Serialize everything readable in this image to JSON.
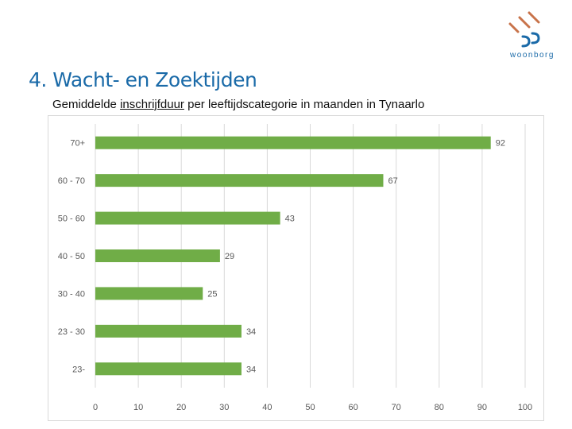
{
  "slide": {
    "title": "4. Wacht- en Zoektijden",
    "subtitle_before": "Gemiddelde ",
    "subtitle_underlined": "inschrijfduur",
    "subtitle_after": " per leeftijdscategorie in maanden in Tynaarlo"
  },
  "logo": {
    "text": "woonborg"
  },
  "colors": {
    "bar": "#70ad47",
    "title": "#1a6aa8",
    "grid": "#d9d9d9",
    "label": "#595959"
  },
  "chart_data": {
    "type": "bar",
    "orientation": "horizontal",
    "categories": [
      "70+",
      "60 - 70",
      "50 - 60",
      "40 - 50",
      "30 - 40",
      "23 - 30",
      "23-"
    ],
    "values": [
      92,
      67,
      43,
      29,
      25,
      34,
      34
    ],
    "xlim": [
      0,
      100
    ],
    "xticks": [
      0,
      10,
      20,
      30,
      40,
      50,
      60,
      70,
      80,
      90,
      100
    ],
    "title": "",
    "xlabel": "",
    "ylabel": "",
    "grid": true,
    "data_labels": true
  }
}
